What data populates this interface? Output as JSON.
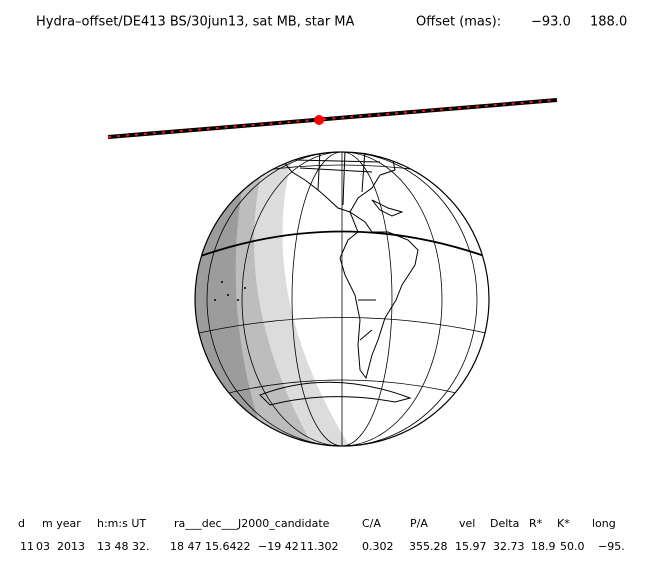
{
  "title": {
    "text": "Hydra–offset/DE413 BS/30jun13, sat MB, star MA",
    "offset_label": "Offset (mas):",
    "offset_x": "−93.0",
    "offset_y": "188.0"
  },
  "table": {
    "header": [
      "d",
      "m year",
      "h:m:s UT",
      "ra___dec___J2000_candidate",
      "C/A",
      "P/A",
      "vel",
      "Delta",
      "R*",
      "K*",
      "long"
    ],
    "row": [
      "11",
      "03",
      "2013",
      "13 48 32.",
      "18 47 15.6422",
      "−19 42",
      "11.302",
      "0.302",
      "355.28",
      "15.97",
      "32.73",
      "18.9",
      "50.0",
      "−95."
    ]
  }
}
